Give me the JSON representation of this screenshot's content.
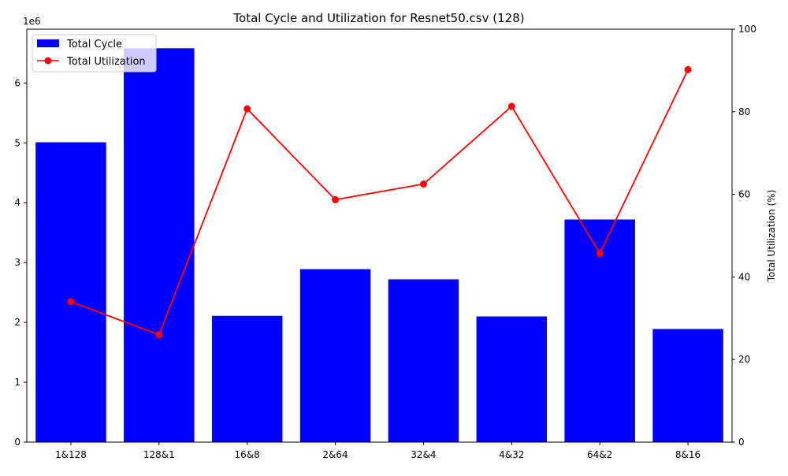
{
  "chart_data": {
    "type": "bar",
    "title": "Total Cycle and Utilization for Resnet50.csv (128)",
    "xlabel": "",
    "categories": [
      "1&128",
      "128&1",
      "16&8",
      "2&64",
      "32&4",
      "4&32",
      "64&2",
      "8&16"
    ],
    "left_axis": {
      "label": "",
      "ylim": [
        0,
        6.9
      ],
      "ticks": [
        "0",
        "1",
        "2",
        "3",
        "4",
        "5",
        "6"
      ],
      "tick_values": [
        0,
        1,
        2,
        3,
        4,
        5,
        6
      ],
      "offset_text": "1e6"
    },
    "right_axis": {
      "label": "Total Utilization (%)",
      "ylim": [
        0,
        100
      ],
      "ticks": [
        "0",
        "20",
        "40",
        "60",
        "80",
        "100"
      ],
      "tick_values": [
        0,
        20,
        40,
        60,
        80,
        100
      ]
    },
    "series": [
      {
        "name": "Total Cycle",
        "type": "bar",
        "axis": "left",
        "color": "#0000ff",
        "values": [
          5.01,
          6.58,
          2.11,
          2.89,
          2.72,
          2.1,
          3.72,
          1.89
        ]
      },
      {
        "name": "Total Utilization",
        "type": "line",
        "axis": "right",
        "color": "#ff0000",
        "values": [
          34.0,
          26.0,
          80.7,
          58.7,
          62.5,
          81.3,
          45.7,
          90.2
        ]
      }
    ],
    "legend_position": "top-left",
    "grid": false
  }
}
